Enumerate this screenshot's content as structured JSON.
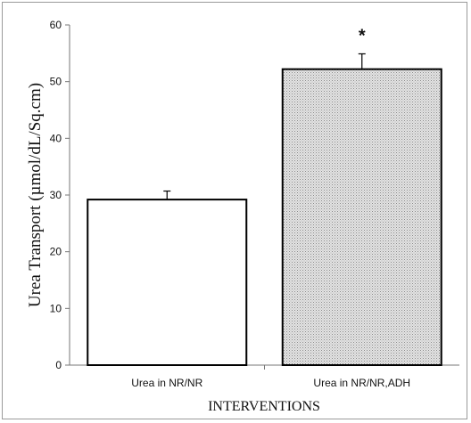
{
  "chart_data": {
    "type": "bar",
    "categories": [
      "Urea in NR/NR",
      "Urea in NR/NR,ADH"
    ],
    "values": [
      29.2,
      52.2
    ],
    "errors": [
      1.5,
      2.7
    ],
    "annotations": [
      "",
      "*"
    ],
    "xlabel": "INTERVENTIONS",
    "ylabel": "Urea Transport (µmol/dL/Sq.cm)",
    "ylim": [
      0,
      60
    ],
    "yticks": [
      0,
      10,
      20,
      30,
      40,
      50,
      60
    ],
    "grid": false,
    "legend": "none",
    "bar_fills": [
      "#ffffff",
      "#cfcfcf"
    ],
    "bar_patterns": [
      "none",
      "dotted"
    ]
  }
}
